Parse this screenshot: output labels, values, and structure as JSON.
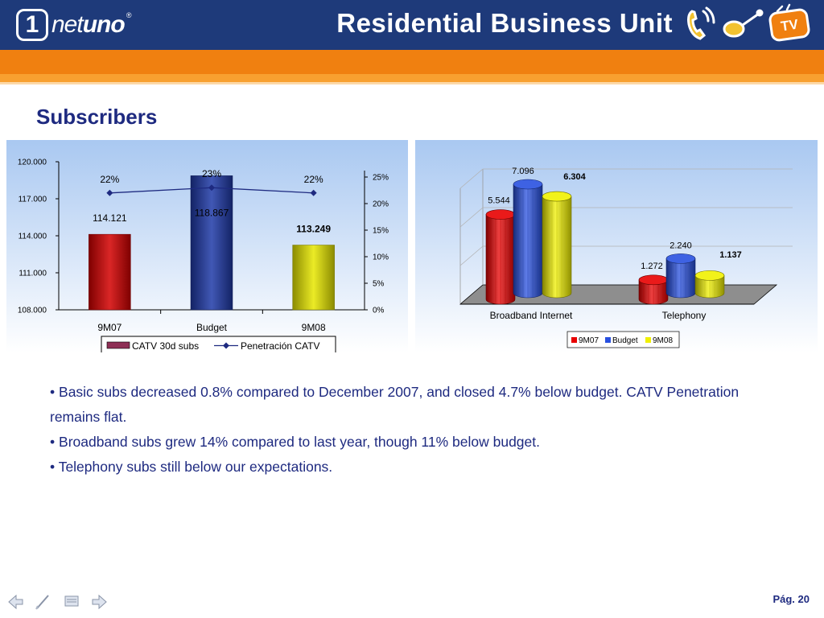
{
  "header": {
    "logo_one": "1",
    "logo_net": "net",
    "logo_uno": "uno",
    "logo_mark": "®",
    "title": "Residential Business Unit",
    "tv_label": "TV",
    "icons": [
      "phone-icon",
      "broadband-icon",
      "tv-icon"
    ]
  },
  "section_title": "Subscribers",
  "chart_data": [
    {
      "type": "bar",
      "categories": [
        "9M07",
        "Budget",
        "9M08"
      ],
      "series": [
        {
          "name": "CATV 30d subs",
          "values": [
            114121,
            118867,
            113249
          ],
          "data_labels": [
            "114.121",
            "118.867",
            "113.249"
          ],
          "colors": [
            "#d40000",
            "#1f3aa8",
            "#e8e800"
          ]
        },
        {
          "name": "Penetración CATV",
          "type": "line",
          "values": [
            22,
            23,
            22
          ],
          "data_labels": [
            "22%",
            "23%",
            "22%"
          ],
          "color": "#1e2a80"
        }
      ],
      "ylim": [
        108000,
        120000
      ],
      "y_ticks": [
        "108.000",
        "111.000",
        "114.000",
        "117.000",
        "120.000"
      ],
      "y2lim": [
        0,
        25
      ],
      "y2_ticks": [
        "0%",
        "5%",
        "10%",
        "15%",
        "20%",
        "25%"
      ],
      "legend_position": "bottom",
      "background": "#bcd6f6"
    },
    {
      "type": "bar",
      "style": "3d-cylinder",
      "categories": [
        "Broadband Internet",
        "Telephony"
      ],
      "series": [
        {
          "name": "9M07",
          "values": [
            5544,
            1272
          ],
          "data_labels": [
            "5.544",
            "1.272"
          ],
          "color": "#e80000"
        },
        {
          "name": "Budget",
          "values": [
            7096,
            2240
          ],
          "data_labels": [
            "7.096",
            "2.240"
          ],
          "color": "#2850e0"
        },
        {
          "name": "9M08",
          "values": [
            6304,
            1137
          ],
          "data_labels": [
            "6.304",
            "1.137"
          ],
          "color": "#f0f000"
        }
      ],
      "ymax": 7500,
      "legend_position": "bottom",
      "background": "#bcd6f6"
    }
  ],
  "bullets": [
    "Basic subs decreased 0.8% compared to December 2007, and closed 4.7% below budget. CATV Penetration remains flat.",
    "Broadband subs grew 14% compared to last year, though 11% below budget.",
    "Telephony subs still below our expectations."
  ],
  "footer": {
    "nav_icons": [
      "back-arrow-icon",
      "pen-icon",
      "screen-icon",
      "forward-arrow-icon"
    ],
    "page": "Pág. 20"
  }
}
